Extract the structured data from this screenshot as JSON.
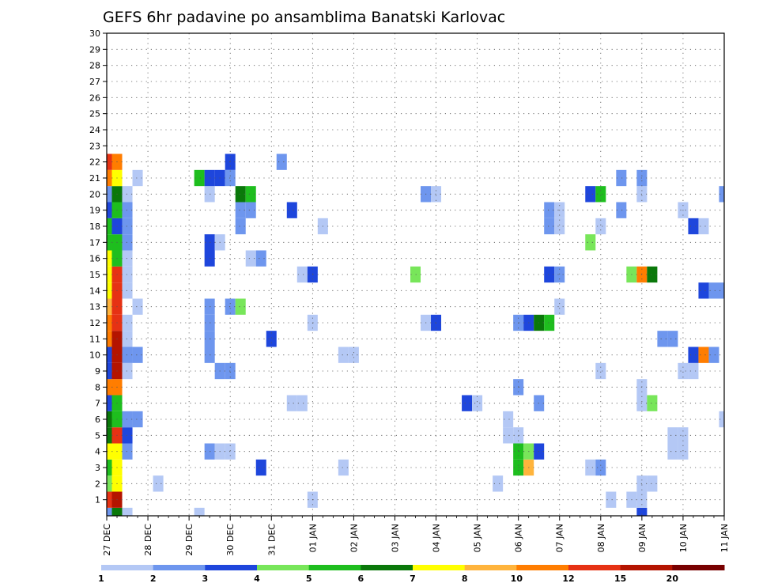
{
  "chart_data": {
    "type": "heatmap",
    "title": "GEFS 6hr padavine po ansamblima Banatski Karlovac",
    "xlabel": "",
    "ylabel": "",
    "x_tick_labels": [
      "27 DEC",
      "28 DEC",
      "29 DEC",
      "30 DEC",
      "31 DEC",
      "01 JAN",
      "02 JAN",
      "03 JAN",
      "04 JAN",
      "05 JAN",
      "06 JAN",
      "07 JAN",
      "08 JAN",
      "09 JAN",
      "10 JAN",
      "11 JAN"
    ],
    "y_tick_labels": [
      "1",
      "2",
      "3",
      "4",
      "5",
      "6",
      "7",
      "8",
      "9",
      "10",
      "11",
      "12",
      "13",
      "14",
      "15",
      "16",
      "17",
      "18",
      "19",
      "20",
      "21",
      "22",
      "23",
      "24",
      "25",
      "26",
      "27",
      "28",
      "29",
      "30"
    ],
    "ensemble_members": [
      0,
      1,
      2,
      3,
      4,
      5,
      6,
      7,
      8,
      9,
      10,
      11,
      12,
      13,
      14,
      15,
      16,
      17,
      18,
      19,
      20,
      21,
      22,
      23,
      24,
      25,
      26,
      27,
      28,
      29,
      30
    ],
    "time_steps_per_day": 4,
    "n_time_steps": 61,
    "grid": true,
    "colorbar": {
      "position": "bottom",
      "bounds": [
        "1",
        "2",
        "3",
        "4",
        "5",
        "6",
        "7",
        "8",
        "10",
        "12",
        "15",
        "20"
      ],
      "colors": [
        "#b4c8f5",
        "#6e96ee",
        "#1e46dc",
        "#78e65a",
        "#1ebe1e",
        "#0a780a",
        "#ffff00",
        "#ffb43c",
        "#ff7d00",
        "#e63214",
        "#b41400",
        "#780000"
      ]
    },
    "cells": [
      [
        0,
        0,
        1
      ],
      [
        0,
        1,
        5
      ],
      [
        0,
        2,
        0
      ],
      [
        0,
        9,
        0
      ],
      [
        0,
        52,
        2
      ],
      [
        1,
        0,
        9
      ],
      [
        1,
        1,
        10
      ],
      [
        1,
        20,
        0
      ],
      [
        1,
        49,
        0
      ],
      [
        1,
        51,
        0
      ],
      [
        1,
        52,
        0
      ],
      [
        2,
        0,
        3
      ],
      [
        2,
        1,
        6
      ],
      [
        2,
        5,
        0
      ],
      [
        2,
        38,
        0
      ],
      [
        2,
        52,
        0
      ],
      [
        2,
        53,
        0
      ],
      [
        3,
        0,
        4
      ],
      [
        3,
        1,
        6
      ],
      [
        3,
        15,
        2
      ],
      [
        3,
        23,
        0
      ],
      [
        3,
        40,
        4
      ],
      [
        3,
        41,
        7
      ],
      [
        3,
        47,
        0
      ],
      [
        3,
        48,
        1
      ],
      [
        4,
        0,
        6
      ],
      [
        4,
        1,
        6
      ],
      [
        4,
        2,
        1
      ],
      [
        4,
        10,
        1
      ],
      [
        4,
        11,
        0
      ],
      [
        4,
        12,
        0
      ],
      [
        4,
        40,
        4
      ],
      [
        4,
        41,
        3
      ],
      [
        4,
        42,
        2
      ],
      [
        4,
        55,
        0
      ],
      [
        4,
        56,
        0
      ],
      [
        5,
        0,
        5
      ],
      [
        5,
        1,
        9
      ],
      [
        5,
        2,
        2
      ],
      [
        5,
        39,
        0
      ],
      [
        5,
        40,
        0
      ],
      [
        5,
        55,
        0
      ],
      [
        5,
        56,
        0
      ],
      [
        6,
        0,
        5
      ],
      [
        6,
        1,
        4
      ],
      [
        6,
        2,
        1
      ],
      [
        6,
        3,
        1
      ],
      [
        6,
        39,
        0
      ],
      [
        6,
        60,
        0
      ],
      [
        7,
        0,
        2
      ],
      [
        7,
        1,
        4
      ],
      [
        7,
        18,
        0
      ],
      [
        7,
        19,
        0
      ],
      [
        7,
        35,
        2
      ],
      [
        7,
        36,
        0
      ],
      [
        7,
        42,
        1
      ],
      [
        7,
        52,
        0
      ],
      [
        7,
        53,
        3
      ],
      [
        8,
        0,
        8
      ],
      [
        8,
        1,
        8
      ],
      [
        8,
        40,
        1
      ],
      [
        8,
        52,
        0
      ],
      [
        9,
        0,
        2
      ],
      [
        9,
        1,
        10
      ],
      [
        9,
        2,
        0
      ],
      [
        9,
        11,
        1
      ],
      [
        9,
        12,
        1
      ],
      [
        9,
        48,
        0
      ],
      [
        9,
        56,
        0
      ],
      [
        9,
        57,
        0
      ],
      [
        10,
        0,
        2
      ],
      [
        10,
        1,
        10
      ],
      [
        10,
        2,
        1
      ],
      [
        10,
        3,
        1
      ],
      [
        10,
        10,
        1
      ],
      [
        10,
        23,
        0
      ],
      [
        10,
        24,
        0
      ],
      [
        10,
        57,
        2
      ],
      [
        10,
        58,
        8
      ],
      [
        10,
        59,
        1
      ],
      [
        11,
        0,
        8
      ],
      [
        11,
        1,
        10
      ],
      [
        11,
        2,
        0
      ],
      [
        11,
        10,
        1
      ],
      [
        11,
        16,
        2
      ],
      [
        11,
        54,
        1
      ],
      [
        11,
        55,
        1
      ],
      [
        12,
        0,
        8
      ],
      [
        12,
        1,
        9
      ],
      [
        12,
        2,
        0
      ],
      [
        12,
        10,
        1
      ],
      [
        12,
        20,
        0
      ],
      [
        12,
        31,
        0
      ],
      [
        12,
        32,
        2
      ],
      [
        12,
        40,
        1
      ],
      [
        12,
        41,
        2
      ],
      [
        12,
        42,
        5
      ],
      [
        12,
        43,
        4
      ],
      [
        13,
        0,
        7
      ],
      [
        13,
        1,
        9
      ],
      [
        13,
        3,
        0
      ],
      [
        13,
        10,
        1
      ],
      [
        13,
        12,
        1
      ],
      [
        13,
        13,
        3
      ],
      [
        13,
        44,
        0
      ],
      [
        14,
        0,
        6
      ],
      [
        14,
        1,
        9
      ],
      [
        14,
        2,
        0
      ],
      [
        14,
        58,
        2
      ],
      [
        14,
        59,
        1
      ],
      [
        14,
        60,
        1
      ],
      [
        15,
        0,
        6
      ],
      [
        15,
        1,
        9
      ],
      [
        15,
        2,
        0
      ],
      [
        15,
        19,
        0
      ],
      [
        15,
        20,
        2
      ],
      [
        15,
        30,
        3
      ],
      [
        15,
        43,
        2
      ],
      [
        15,
        44,
        1
      ],
      [
        15,
        51,
        3
      ],
      [
        15,
        52,
        8
      ],
      [
        15,
        53,
        5
      ],
      [
        16,
        0,
        6
      ],
      [
        16,
        1,
        4
      ],
      [
        16,
        2,
        0
      ],
      [
        16,
        10,
        2
      ],
      [
        16,
        14,
        0
      ],
      [
        16,
        15,
        1
      ],
      [
        17,
        0,
        4
      ],
      [
        17,
        1,
        4
      ],
      [
        17,
        2,
        1
      ],
      [
        17,
        10,
        2
      ],
      [
        17,
        11,
        0
      ],
      [
        17,
        47,
        3
      ],
      [
        18,
        0,
        4
      ],
      [
        18,
        1,
        2
      ],
      [
        18,
        2,
        1
      ],
      [
        18,
        13,
        1
      ],
      [
        18,
        21,
        0
      ],
      [
        18,
        43,
        1
      ],
      [
        18,
        44,
        0
      ],
      [
        18,
        48,
        0
      ],
      [
        18,
        57,
        2
      ],
      [
        18,
        58,
        0
      ],
      [
        19,
        0,
        2
      ],
      [
        19,
        1,
        4
      ],
      [
        19,
        2,
        1
      ],
      [
        19,
        13,
        1
      ],
      [
        19,
        14,
        1
      ],
      [
        19,
        18,
        2
      ],
      [
        19,
        43,
        1
      ],
      [
        19,
        44,
        0
      ],
      [
        19,
        50,
        1
      ],
      [
        19,
        56,
        0
      ],
      [
        20,
        0,
        1
      ],
      [
        20,
        1,
        5
      ],
      [
        20,
        2,
        0
      ],
      [
        20,
        10,
        0
      ],
      [
        20,
        13,
        5
      ],
      [
        20,
        14,
        4
      ],
      [
        20,
        31,
        1
      ],
      [
        20,
        32,
        0
      ],
      [
        20,
        47,
        2
      ],
      [
        20,
        48,
        4
      ],
      [
        20,
        52,
        0
      ],
      [
        20,
        60,
        1
      ],
      [
        21,
        0,
        8
      ],
      [
        21,
        1,
        6
      ],
      [
        21,
        3,
        0
      ],
      [
        21,
        9,
        4
      ],
      [
        21,
        10,
        2
      ],
      [
        21,
        11,
        2
      ],
      [
        21,
        12,
        1
      ],
      [
        21,
        50,
        1
      ],
      [
        21,
        52,
        1
      ],
      [
        22,
        0,
        9
      ],
      [
        22,
        1,
        8
      ],
      [
        22,
        12,
        2
      ],
      [
        22,
        17,
        1
      ]
    ]
  }
}
